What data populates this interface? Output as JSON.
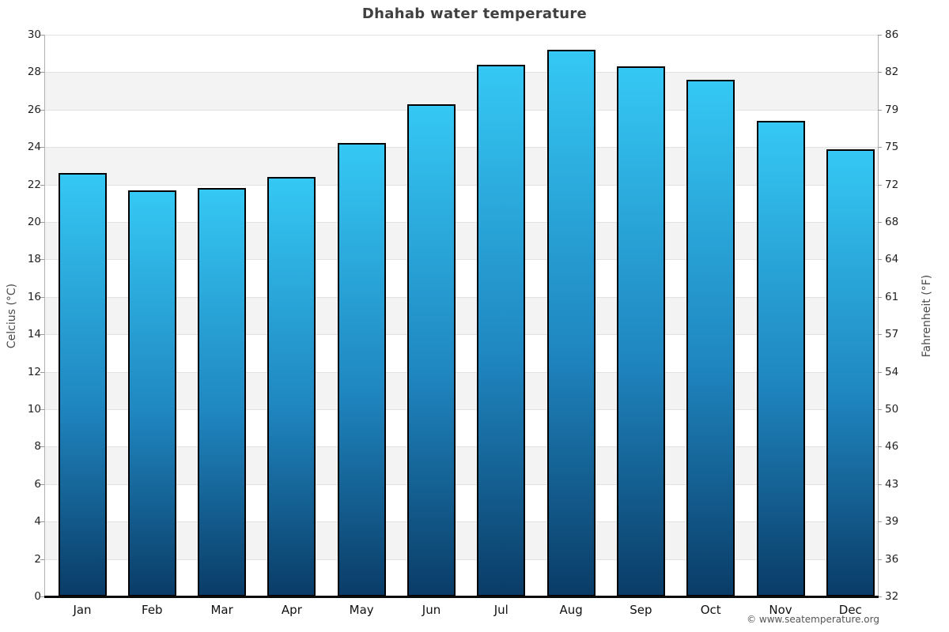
{
  "title": "Dhahab water temperature",
  "credit": "© www.seatemperature.org",
  "axes": {
    "left_label": "Celcius (°C)",
    "right_label": "Fahrenheit (°F)"
  },
  "chart_data": {
    "type": "bar",
    "title": "Dhahab water temperature",
    "categories": [
      "Jan",
      "Feb",
      "Mar",
      "Apr",
      "May",
      "Jun",
      "Jul",
      "Aug",
      "Sep",
      "Oct",
      "Nov",
      "Dec"
    ],
    "values": [
      22.6,
      21.7,
      21.8,
      22.4,
      24.2,
      26.3,
      28.4,
      29.2,
      28.3,
      27.6,
      25.4,
      23.9
    ],
    "xlabel": "",
    "ylabel": "Celcius (°C)",
    "ylabel_right": "Fahrenheit (°F)",
    "ylim": [
      0,
      30
    ],
    "y_ticks_celsius_top_to_bottom": [
      30,
      28,
      26,
      24,
      22,
      20,
      18,
      16,
      14,
      12,
      10,
      8,
      6,
      4,
      2,
      0
    ],
    "y_ticks_fahrenheit_top_to_bottom": [
      86,
      82,
      79,
      75,
      72,
      68,
      64,
      61,
      57,
      54,
      50,
      46,
      43,
      39,
      36,
      32
    ],
    "grid": "horizontal gridlines every 2°C with alternating white/gray bands",
    "legend": "none",
    "colors": {
      "bar_gradient_top": "#35c8f4",
      "bar_gradient_bottom": "#0a3c67",
      "bar_border": "#000000",
      "band_gray": "#f3f3f3",
      "band_white": "#ffffff",
      "gridline": "#e2e2e2",
      "axis_line": "#b0b0b0",
      "baseline": "#0a0a0a",
      "title_text": "#404040",
      "tick_text": "#222222",
      "axis_title_text": "#4a4a4a",
      "credit_text": "#555555"
    }
  }
}
